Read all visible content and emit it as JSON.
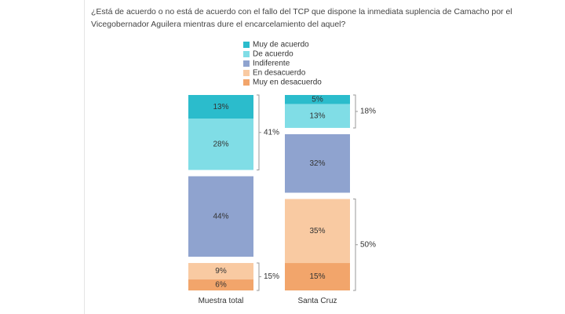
{
  "chart_data": {
    "type": "bar",
    "title": "¿Está de acuerdo o no está de acuerdo con el fallo del TCP que dispone la inmediata suplencia de Camacho por el Vicegobernador Aguilera mientras dure el encarcelamiento del aquel?",
    "categories": [
      "Muestra total",
      "Santa Cruz"
    ],
    "stacked": true,
    "series": [
      {
        "name": "Muy de acuerdo",
        "color": "#2bbccc",
        "values": [
          13,
          5
        ],
        "value_labels": [
          "13%",
          "5%"
        ]
      },
      {
        "name": "De acuerdo",
        "color": "#80dde6",
        "values": [
          28,
          13
        ],
        "value_labels": [
          "28%",
          "13%"
        ]
      },
      {
        "name": "Indiferente",
        "color": "#8fa3cf",
        "values": [
          44,
          32
        ],
        "value_labels": [
          "44%",
          "32%"
        ]
      },
      {
        "name": "En desacuerdo",
        "color": "#f9caa2",
        "values": [
          9,
          35
        ],
        "value_labels": [
          "9%",
          "35%"
        ]
      },
      {
        "name": "Muy en desacuerdo",
        "color": "#f2a56b",
        "values": [
          6,
          15
        ],
        "value_labels": [
          "6%",
          "15%"
        ]
      }
    ],
    "bracket_values": [
      [
        41,
        15
      ],
      [
        18,
        50
      ]
    ],
    "bracket_labels": [
      [
        "41%",
        "15%"
      ],
      [
        "18%",
        "50%"
      ]
    ]
  }
}
